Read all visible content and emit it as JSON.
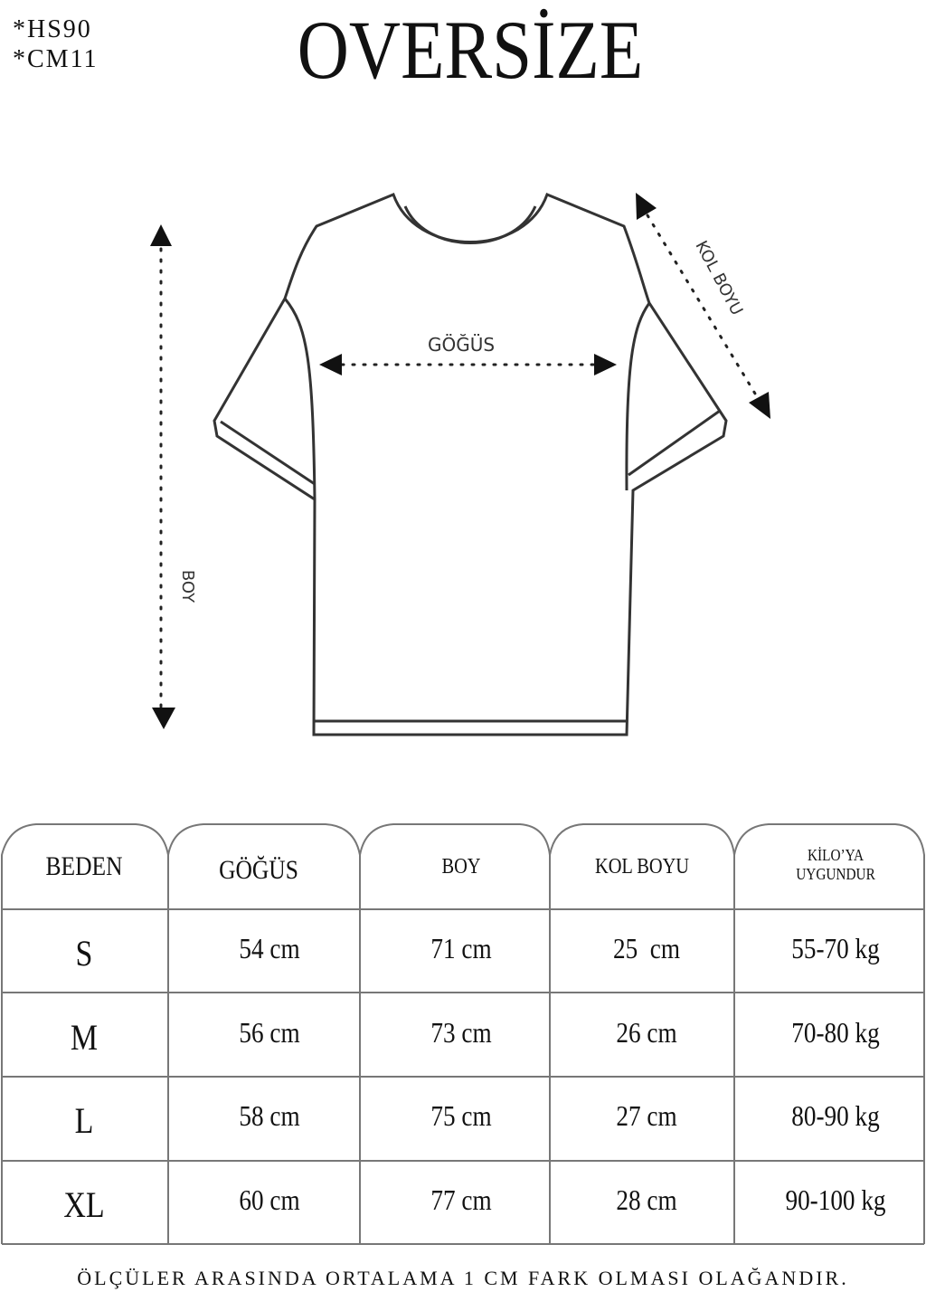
{
  "codes": [
    "*HS90",
    "*CM11"
  ],
  "title": "OVERSİZE",
  "diagram": {
    "chest_label": "GÖĞÜS",
    "length_label": "BOY",
    "sleeve_label": "KOL BOYU"
  },
  "table": {
    "headers": [
      "BEDEN",
      "GÖĞÜS",
      "BOY",
      "KOL BOYU",
      "KİLO’YA UYGUNDUR"
    ],
    "header_weight_lines": [
      "KİLO’YA",
      "UYGUNDUR"
    ],
    "rows": [
      [
        "S",
        "54 cm",
        "71 cm",
        "25  cm",
        "55-70 kg"
      ],
      [
        "M",
        "56 cm",
        "73 cm",
        "26 cm",
        "70-80 kg"
      ],
      [
        "L",
        "58 cm",
        "75 cm",
        "27 cm",
        "80-90 kg"
      ],
      [
        "XL",
        "60 cm",
        "77 cm",
        "28 cm",
        "90-100 kg"
      ]
    ]
  },
  "footer": "ÖLÇÜLER ARASINDA ORTALAMA 1 CM FARK OLMASI OLAĞANDIR."
}
